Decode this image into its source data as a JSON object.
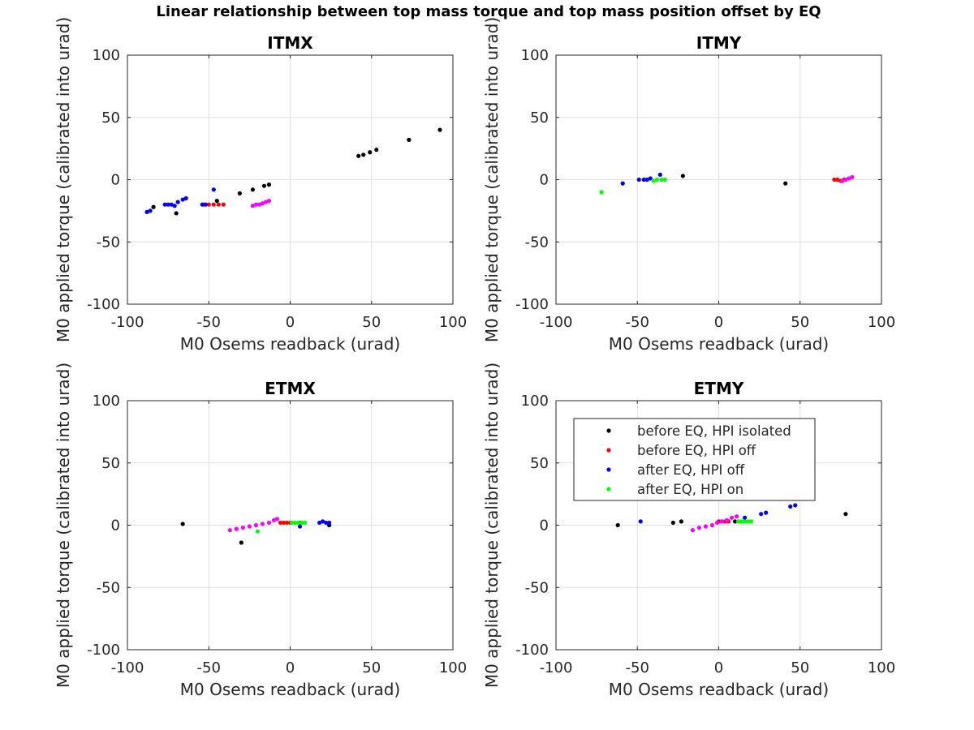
{
  "suptitle": "Linear relationship between top mass torque and top mass position offset by EQ",
  "colors": {
    "before EQ, HPI isolated": "#000000",
    "before EQ, HPI off": "#ff0000",
    "after EQ, HPI off": "#0000ff",
    "after EQ, HPI on": "#00ff00",
    "magenta_cluster": "#ff00ff"
  },
  "chart_data": [
    {
      "type": "scatter",
      "title": "ITMX",
      "xlabel": "M0 Osems readback (urad)",
      "ylabel": "M0 applied torque (calibrated into urad)",
      "xlim": [
        -100,
        100
      ],
      "ylim": [
        -100,
        100
      ],
      "xticks": [
        "-100",
        "-50",
        "0",
        "50",
        "100"
      ],
      "yticks": [
        "100",
        "50",
        "0",
        "-50",
        "-100"
      ],
      "grid": true,
      "series": [
        {
          "name": "before EQ, HPI isolated",
          "points": [
            [
              -84,
              -22
            ],
            [
              -70,
              -27
            ],
            [
              -45,
              -17
            ],
            [
              -31,
              -11
            ],
            [
              -23,
              -8
            ],
            [
              -16,
              -5
            ],
            [
              -13,
              -4
            ],
            [
              42,
              19
            ],
            [
              45,
              20
            ],
            [
              49,
              22
            ],
            [
              53,
              24
            ],
            [
              73,
              32
            ],
            [
              92,
              40
            ]
          ]
        },
        {
          "name": "before EQ, HPI off",
          "points": [
            [
              -53,
              -20
            ],
            [
              -50,
              -20
            ],
            [
              -47,
              -20
            ],
            [
              -44,
              -20
            ],
            [
              -41,
              -20
            ]
          ]
        },
        {
          "name": "after EQ, HPI off",
          "points": [
            [
              -88,
              -26
            ],
            [
              -86,
              -25
            ],
            [
              -77,
              -20
            ],
            [
              -75,
              -20
            ],
            [
              -73,
              -20
            ],
            [
              -71,
              -21
            ],
            [
              -69,
              -18
            ],
            [
              -66,
              -16
            ],
            [
              -64,
              -15
            ],
            [
              -54,
              -20
            ],
            [
              -52,
              -20
            ],
            [
              -47,
              -8
            ]
          ]
        },
        {
          "name": "",
          "points": [
            [
              -23,
              -21
            ],
            [
              -21,
              -20
            ],
            [
              -19,
              -20
            ],
            [
              -17,
              -19
            ],
            [
              -15,
              -18
            ],
            [
              -13,
              -17
            ]
          ]
        }
      ]
    },
    {
      "type": "scatter",
      "title": "ITMY",
      "xlabel": "M0 Osems readback (urad)",
      "ylabel": "M0 applied torque (calibrated into urad)",
      "xlim": [
        -100,
        100
      ],
      "ylim": [
        -100,
        100
      ],
      "xticks": [
        "-100",
        "-50",
        "0",
        "50",
        "100"
      ],
      "yticks": [
        "100",
        "50",
        "0",
        "-50",
        "-100"
      ],
      "grid": true,
      "series": [
        {
          "name": "before EQ, HPI isolated",
          "points": [
            [
              -22,
              3
            ],
            [
              41,
              -3
            ]
          ]
        },
        {
          "name": "before EQ, HPI off",
          "points": [
            [
              71,
              0
            ],
            [
              73,
              0
            ],
            [
              75,
              -1
            ],
            [
              77,
              0
            ]
          ]
        },
        {
          "name": "after EQ, HPI off",
          "points": [
            [
              -59,
              -3
            ],
            [
              -49,
              0
            ],
            [
              -46,
              0
            ],
            [
              -44,
              0
            ],
            [
              -42,
              1
            ],
            [
              -36,
              4
            ]
          ]
        },
        {
          "name": "after EQ, HPI on",
          "points": [
            [
              -72,
              -10
            ],
            [
              -40,
              -1
            ],
            [
              -38,
              0
            ],
            [
              -35,
              0
            ],
            [
              -33,
              0
            ]
          ]
        },
        {
          "name": "",
          "points": [
            [
              76,
              -1
            ],
            [
              78,
              0
            ],
            [
              80,
              1
            ],
            [
              82,
              2
            ]
          ]
        }
      ]
    },
    {
      "type": "scatter",
      "title": "ETMX",
      "xlabel": "M0 Osems readback (urad)",
      "ylabel": "M0 applied torque (calibrated into urad)",
      "xlim": [
        -100,
        100
      ],
      "ylim": [
        -100,
        100
      ],
      "xticks": [
        "-100",
        "-50",
        "0",
        "50",
        "100"
      ],
      "yticks": [
        "100",
        "50",
        "0",
        "-50",
        "-100"
      ],
      "grid": true,
      "series": [
        {
          "name": "before EQ, HPI isolated",
          "points": [
            [
              -66,
              1
            ],
            [
              -30,
              -14
            ],
            [
              6,
              2
            ],
            [
              24,
              0
            ]
          ]
        },
        {
          "name": "before EQ, HPI off",
          "points": [
            [
              -6,
              2
            ],
            [
              -4,
              2
            ],
            [
              -2,
              2
            ],
            [
              0,
              2
            ]
          ]
        },
        {
          "name": "after EQ, HPI off",
          "points": [
            [
              6,
              -1
            ],
            [
              18,
              2
            ],
            [
              20,
              3
            ],
            [
              22,
              2
            ],
            [
              24,
              2
            ]
          ]
        },
        {
          "name": "after EQ, HPI on",
          "points": [
            [
              -20,
              -5
            ],
            [
              1,
              2
            ],
            [
              3,
              2
            ],
            [
              5,
              2
            ],
            [
              7,
              2
            ],
            [
              9,
              2
            ]
          ]
        },
        {
          "name": "",
          "points": [
            [
              -37,
              -4
            ],
            [
              -33,
              -3
            ],
            [
              -29,
              -2
            ],
            [
              -25,
              -1
            ],
            [
              -21,
              0
            ],
            [
              -17,
              1
            ],
            [
              -13,
              2
            ],
            [
              -10,
              4
            ],
            [
              -8,
              5
            ]
          ]
        }
      ]
    },
    {
      "type": "scatter",
      "title": "ETMY",
      "xlabel": "M0 Osems readback (urad)",
      "ylabel": "M0 applied torque (calibrated into urad)",
      "xlim": [
        -100,
        100
      ],
      "ylim": [
        -100,
        100
      ],
      "xticks": [
        "-100",
        "-50",
        "0",
        "50",
        "100"
      ],
      "yticks": [
        "100",
        "50",
        "0",
        "-50",
        "-100"
      ],
      "grid": true,
      "legend": {
        "position": "top-left",
        "entries": [
          "before EQ, HPI isolated",
          "before EQ, HPI off",
          "after EQ, HPI off",
          "after EQ, HPI on"
        ]
      },
      "series": [
        {
          "name": "before EQ, HPI isolated",
          "points": [
            [
              -62,
              0
            ],
            [
              -28,
              2
            ],
            [
              -23,
              3
            ],
            [
              10,
              3
            ],
            [
              78,
              9
            ]
          ]
        },
        {
          "name": "before EQ, HPI off",
          "points": [
            [
              0,
              3
            ],
            [
              2,
              3
            ],
            [
              4,
              3
            ],
            [
              6,
              3
            ]
          ]
        },
        {
          "name": "after EQ, HPI off",
          "points": [
            [
              -48,
              3
            ],
            [
              16,
              6
            ],
            [
              26,
              9
            ],
            [
              29,
              10
            ],
            [
              44,
              15
            ],
            [
              47,
              16
            ]
          ]
        },
        {
          "name": "after EQ, HPI on",
          "points": [
            [
              12,
              3
            ],
            [
              14,
              3
            ],
            [
              16,
              3
            ],
            [
              18,
              3
            ],
            [
              20,
              3
            ]
          ]
        },
        {
          "name": "",
          "points": [
            [
              -16,
              -4
            ],
            [
              -12,
              -2
            ],
            [
              -8,
              -1
            ],
            [
              -4,
              0
            ],
            [
              -1,
              2
            ],
            [
              2,
              3
            ],
            [
              5,
              4
            ],
            [
              8,
              6
            ],
            [
              11,
              7
            ]
          ]
        }
      ]
    }
  ]
}
